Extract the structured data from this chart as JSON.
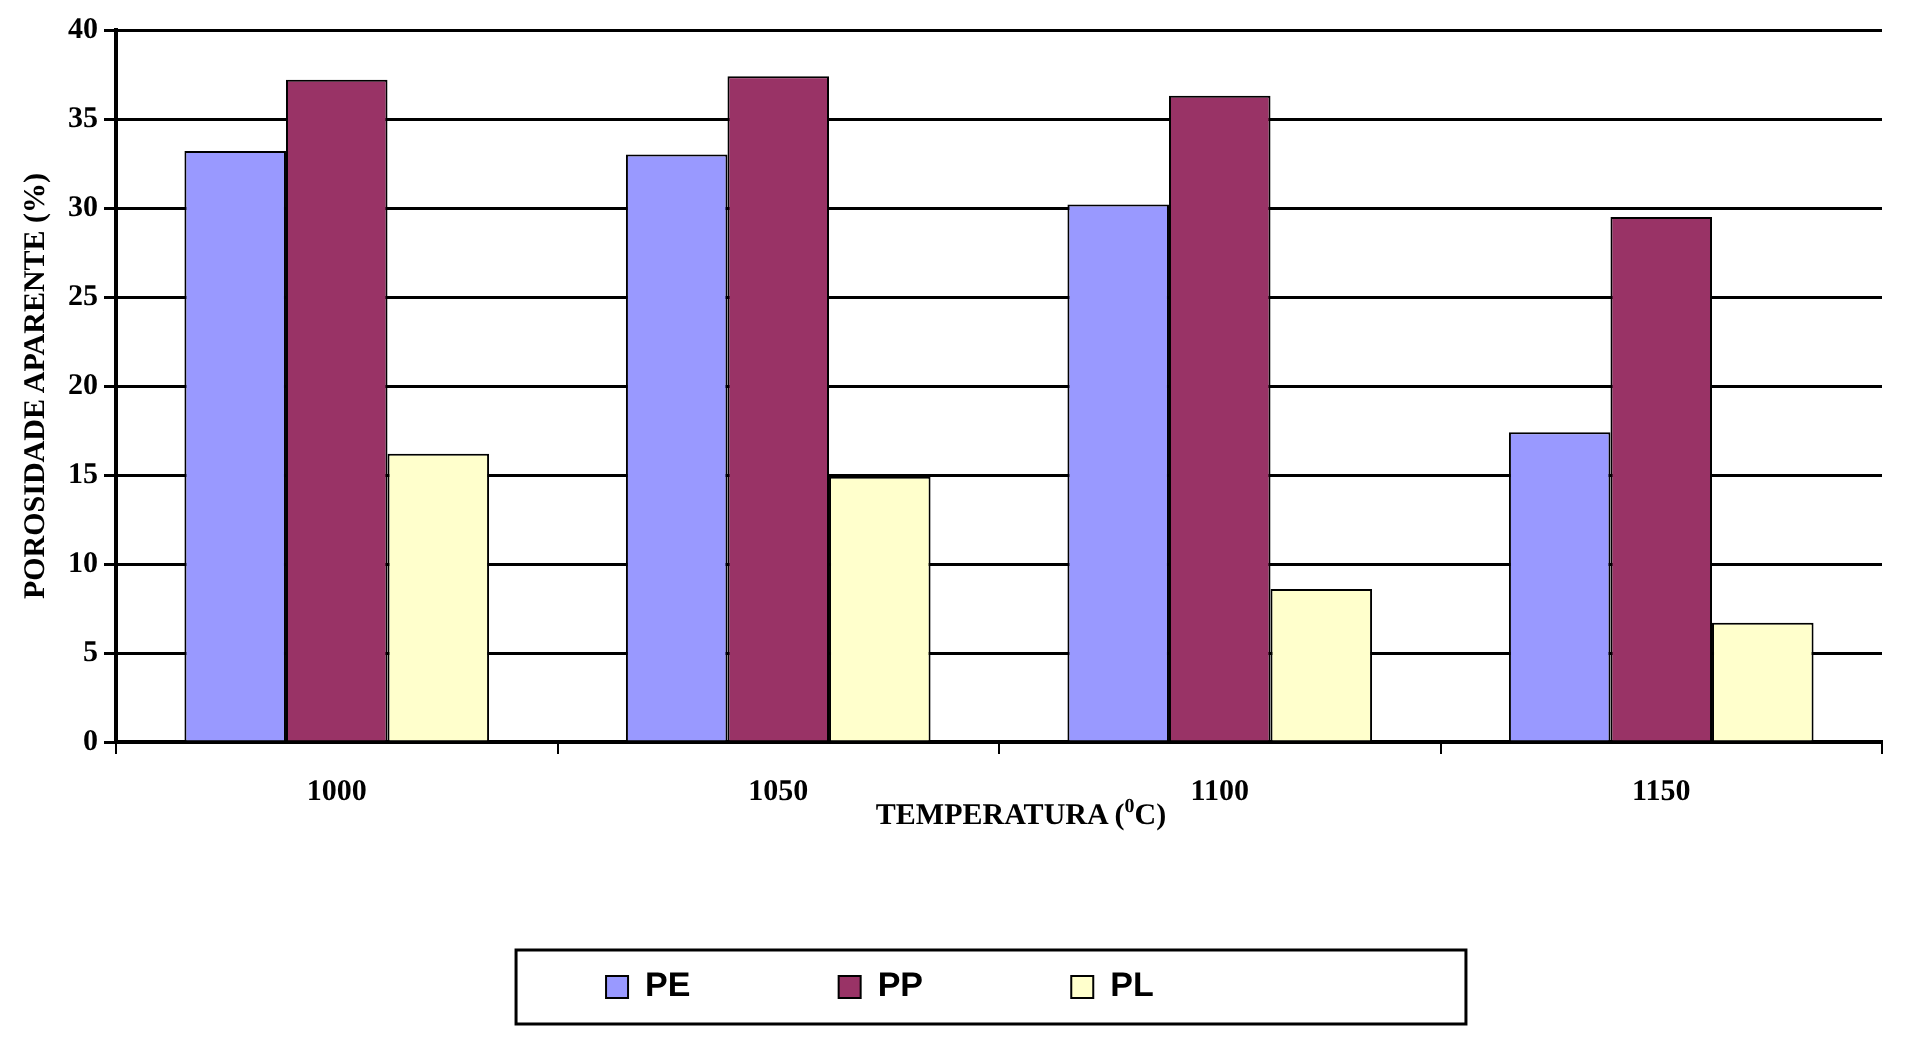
{
  "chart_data": {
    "type": "bar",
    "xlabel": "TEMPERATURA ($^{0}$C)",
    "ylabel": "POROSIDADE APARENTE (%)",
    "categories": [
      "1000",
      "1050",
      "1100",
      "1150"
    ],
    "series": [
      {
        "name": "PE",
        "color": "#9999ff",
        "values": [
          33.2,
          33.0,
          30.2,
          17.4
        ]
      },
      {
        "name": "PP",
        "color": "#993366",
        "values": [
          37.2,
          37.4,
          36.3,
          29.5
        ]
      },
      {
        "name": "PL",
        "color": "#ffffcc",
        "values": [
          16.2,
          14.9,
          8.6,
          6.7
        ]
      }
    ],
    "ylim": [
      0,
      40
    ],
    "yticks": [
      0,
      5,
      10,
      15,
      20,
      25,
      30,
      35,
      40
    ],
    "grid": "y",
    "legend": "bottom"
  }
}
